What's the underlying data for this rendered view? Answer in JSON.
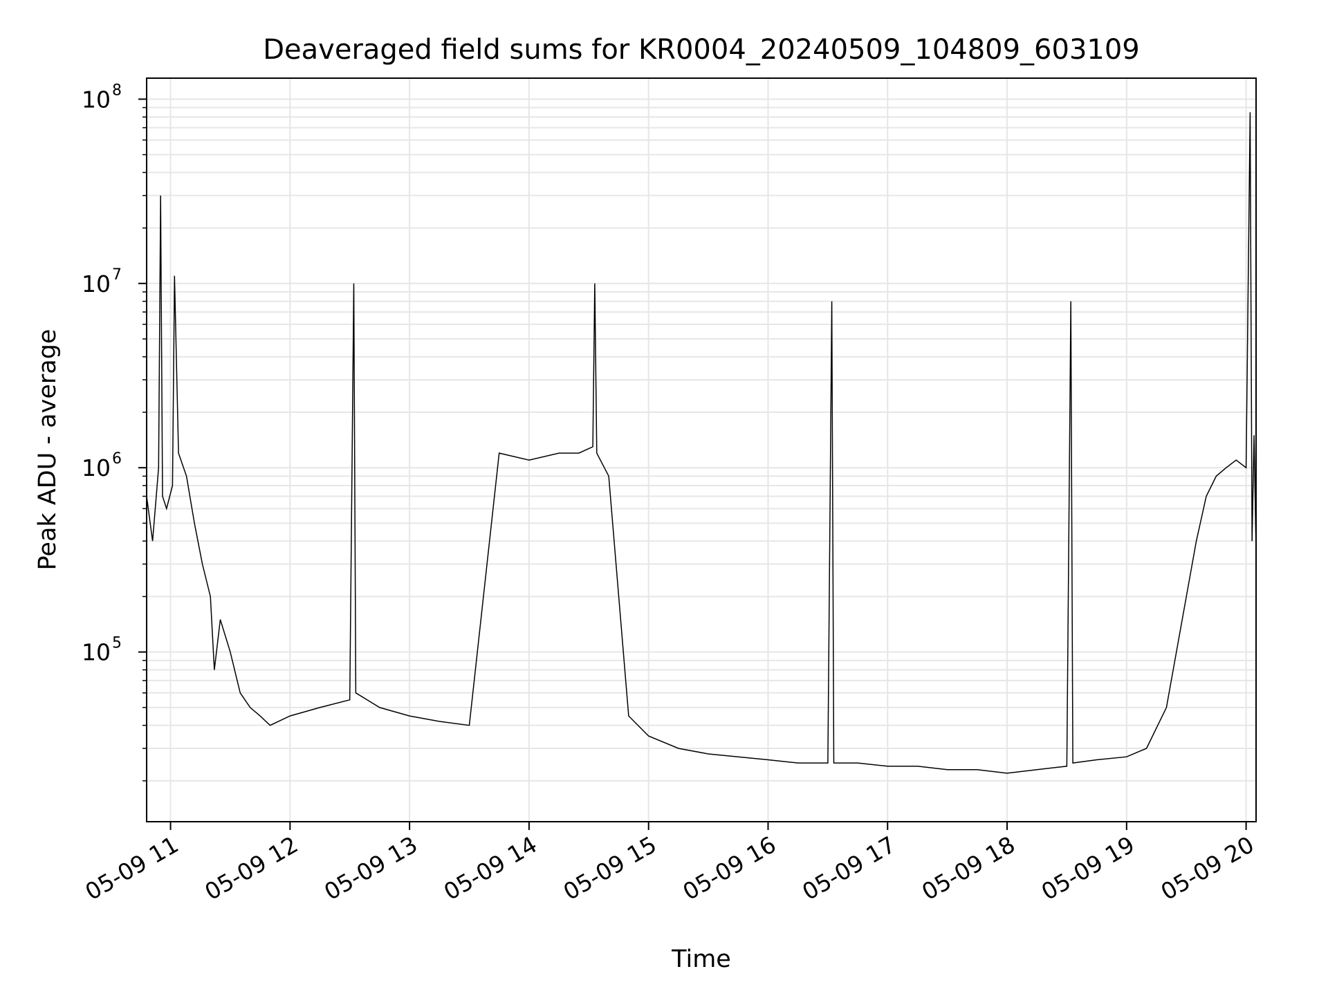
{
  "chart_data": {
    "type": "line",
    "title": "Deaveraged field sums for KR0004_20240509_104809_603109",
    "xlabel": "Time",
    "ylabel": "Peak ADU - average",
    "yscale": "log",
    "xlim": [
      "2024-05-09 10:48",
      "2024-05-09 20:05"
    ],
    "ylim": [
      12000,
      130000000
    ],
    "grid": true,
    "x_ticks": [
      "2024-05-09 11:00",
      "2024-05-09 12:00",
      "2024-05-09 13:00",
      "2024-05-09 14:00",
      "2024-05-09 15:00",
      "2024-05-09 16:00",
      "2024-05-09 17:00",
      "2024-05-09 18:00",
      "2024-05-09 19:00",
      "2024-05-09 20:00"
    ],
    "x_tick_labels": [
      "05-09 11",
      "05-09 12",
      "05-09 13",
      "05-09 14",
      "05-09 15",
      "05-09 16",
      "05-09 17",
      "05-09 18",
      "05-09 19",
      "05-09 20"
    ],
    "y_tick_labels": [
      {
        "value": 100000,
        "base": "10",
        "exp": "5"
      },
      {
        "value": 1000000,
        "base": "10",
        "exp": "6"
      },
      {
        "value": 10000000,
        "base": "10",
        "exp": "7"
      },
      {
        "value": 100000000,
        "base": "10",
        "exp": "8"
      }
    ],
    "line_color": "#000000",
    "grid_color": "#e6e6e6",
    "series": [
      {
        "x": [
          "2024-05-09 10:48",
          "2024-05-09 10:51",
          "2024-05-09 10:54",
          "2024-05-09 10:55",
          "2024-05-09 10:56",
          "2024-05-09 10:58",
          "2024-05-09 11:01",
          "2024-05-09 11:02",
          "2024-05-09 11:04",
          "2024-05-09 11:08",
          "2024-05-09 11:12",
          "2024-05-09 11:16",
          "2024-05-09 11:20",
          "2024-05-09 11:22",
          "2024-05-09 11:25",
          "2024-05-09 11:30",
          "2024-05-09 11:35",
          "2024-05-09 11:40",
          "2024-05-09 11:45",
          "2024-05-09 11:50",
          "2024-05-09 12:00",
          "2024-05-09 12:15",
          "2024-05-09 12:30",
          "2024-05-09 12:32",
          "2024-05-09 12:33",
          "2024-05-09 12:45",
          "2024-05-09 13:00",
          "2024-05-09 13:15",
          "2024-05-09 13:30",
          "2024-05-09 13:45",
          "2024-05-09 14:00",
          "2024-05-09 14:15",
          "2024-05-09 14:25",
          "2024-05-09 14:32",
          "2024-05-09 14:33",
          "2024-05-09 14:34",
          "2024-05-09 14:40",
          "2024-05-09 14:50",
          "2024-05-09 15:00",
          "2024-05-09 15:15",
          "2024-05-09 15:30",
          "2024-05-09 15:45",
          "2024-05-09 16:00",
          "2024-05-09 16:15",
          "2024-05-09 16:30",
          "2024-05-09 16:32",
          "2024-05-09 16:33",
          "2024-05-09 16:45",
          "2024-05-09 17:00",
          "2024-05-09 17:15",
          "2024-05-09 17:30",
          "2024-05-09 17:45",
          "2024-05-09 18:00",
          "2024-05-09 18:15",
          "2024-05-09 18:30",
          "2024-05-09 18:32",
          "2024-05-09 18:33",
          "2024-05-09 18:45",
          "2024-05-09 19:00",
          "2024-05-09 19:10",
          "2024-05-09 19:20",
          "2024-05-09 19:25",
          "2024-05-09 19:30",
          "2024-05-09 19:35",
          "2024-05-09 19:40",
          "2024-05-09 19:45",
          "2024-05-09 19:50",
          "2024-05-09 19:55",
          "2024-05-09 20:00",
          "2024-05-09 20:02",
          "2024-05-09 20:03",
          "2024-05-09 20:04",
          "2024-05-09 20:05"
        ],
        "y": [
          700000,
          400000,
          1000000,
          30000000,
          700000,
          600000,
          800000,
          11000000,
          1200000,
          900000,
          500000,
          300000,
          200000,
          80000,
          150000,
          100000,
          60000,
          50000,
          45000,
          40000,
          45000,
          50000,
          55000,
          10000000,
          60000,
          50000,
          45000,
          42000,
          40000,
          1200000,
          1100000,
          1200000,
          1200000,
          1300000,
          10000000,
          1200000,
          900000,
          45000,
          35000,
          30000,
          28000,
          27000,
          26000,
          25000,
          25000,
          8000000,
          25000,
          25000,
          24000,
          24000,
          23000,
          23000,
          22000,
          23000,
          24000,
          8000000,
          25000,
          26000,
          27000,
          30000,
          50000,
          100000,
          200000,
          400000,
          700000,
          900000,
          1000000,
          1100000,
          1000000,
          85000000,
          400000,
          1500000,
          350000
        ]
      }
    ],
    "envelope": {
      "note": "",
      "upper": [],
      "lower": []
    }
  }
}
